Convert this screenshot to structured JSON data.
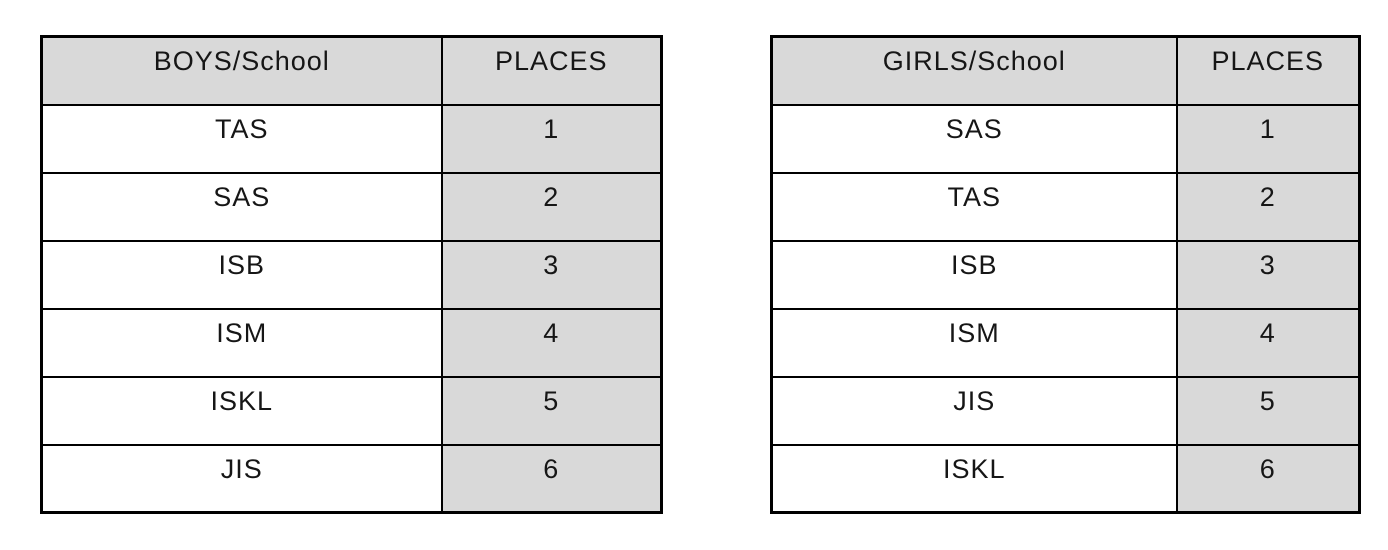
{
  "colors": {
    "shade": "#d9d9d9",
    "border": "#000000",
    "text": "#161616",
    "page_background": "#ffffff"
  },
  "tables": [
    {
      "name": "boys-results-table",
      "headers": [
        "BOYS/School",
        "PLACES"
      ],
      "rows": [
        [
          "TAS",
          "1"
        ],
        [
          "SAS",
          "2"
        ],
        [
          "ISB",
          "3"
        ],
        [
          "ISM",
          "4"
        ],
        [
          "ISKL",
          "5"
        ],
        [
          "JIS",
          "6"
        ]
      ]
    },
    {
      "name": "girls-results-table",
      "headers": [
        "GIRLS/School",
        "PLACES"
      ],
      "rows": [
        [
          "SAS",
          "1"
        ],
        [
          "TAS",
          "2"
        ],
        [
          "ISB",
          "3"
        ],
        [
          "ISM",
          "4"
        ],
        [
          "JIS",
          "5"
        ],
        [
          "ISKL",
          "6"
        ]
      ]
    }
  ],
  "chart_data": [
    {
      "type": "table",
      "title": "BOYS/School places",
      "columns": [
        "BOYS/School",
        "PLACES"
      ],
      "rows": [
        [
          "TAS",
          1
        ],
        [
          "SAS",
          2
        ],
        [
          "ISB",
          3
        ],
        [
          "ISM",
          4
        ],
        [
          "ISKL",
          5
        ],
        [
          "JIS",
          6
        ]
      ]
    },
    {
      "type": "table",
      "title": "GIRLS/School places",
      "columns": [
        "GIRLS/School",
        "PLACES"
      ],
      "rows": [
        [
          "SAS",
          1
        ],
        [
          "TAS",
          2
        ],
        [
          "ISB",
          3
        ],
        [
          "ISM",
          4
        ],
        [
          "JIS",
          5
        ],
        [
          "ISKL",
          6
        ]
      ]
    }
  ]
}
